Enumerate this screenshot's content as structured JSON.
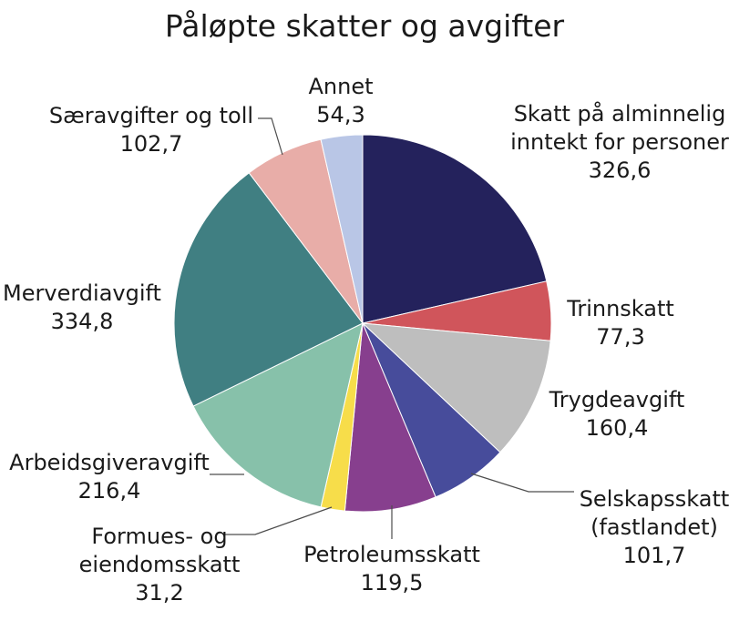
{
  "chart_data": {
    "type": "pie",
    "title": "Påløpte skatter og avgifter",
    "slices": [
      {
        "label": "Skatt på alminnelig inntekt for personer",
        "label_lines": [
          "Skatt på alminnelig",
          "inntekt for personer"
        ],
        "value": 326.6,
        "value_text": "326,6",
        "color": "#24225c"
      },
      {
        "label": "Trinnskatt",
        "label_lines": [
          "Trinnskatt"
        ],
        "value": 77.3,
        "value_text": "77,3",
        "color": "#d0555b"
      },
      {
        "label": "Trygdeavgift",
        "label_lines": [
          "Trygdeavgift"
        ],
        "value": 160.4,
        "value_text": "160,4",
        "color": "#bebebe"
      },
      {
        "label": "Selskapsskatt (fastlandet)",
        "label_lines": [
          "Selskapsskatt",
          "(fastlandet)"
        ],
        "value": 101.7,
        "value_text": "101,7",
        "color": "#474c9b"
      },
      {
        "label": "Petroleumsskatt",
        "label_lines": [
          "Petroleumsskatt"
        ],
        "value": 119.5,
        "value_text": "119,5",
        "color": "#873f8e"
      },
      {
        "label": "Formues- og eiendomsskatt",
        "label_lines": [
          "Formues- og",
          "eiendomsskatt"
        ],
        "value": 31.2,
        "value_text": "31,2",
        "color": "#f7dd4a"
      },
      {
        "label": "Arbeidsgiveravgift",
        "label_lines": [
          "Arbeidsgiveravgift"
        ],
        "value": 216.4,
        "value_text": "216,4",
        "color": "#87c1aa"
      },
      {
        "label": "Merverdiavgift",
        "label_lines": [
          "Merverdiavgift"
        ],
        "value": 334.8,
        "value_text": "334,8",
        "color": "#407f82"
      },
      {
        "label": "Særavgifter og toll",
        "label_lines": [
          "Særavgifter og toll"
        ],
        "value": 102.7,
        "value_text": "102,7",
        "color": "#e8ada8"
      },
      {
        "label": "Annet",
        "label_lines": [
          "Annet"
        ],
        "value": 54.3,
        "value_text": "54,3",
        "color": "#b9c6e6"
      }
    ]
  }
}
